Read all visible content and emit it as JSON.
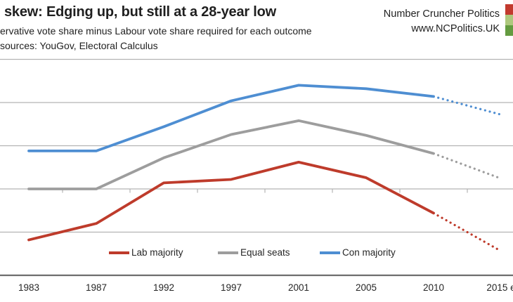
{
  "header": {
    "title": "skew: Edging up, but still at a 28-year low",
    "subtitle": "ervative vote share minus Labour vote share required for each outcome",
    "source_line": "sources: YouGov, Electoral Calculus",
    "brand": {
      "line1": "Number Cruncher Politics",
      "line2": "www.NCPolitics.UK",
      "logo_colors": [
        "#c23a2e",
        "#aec87d",
        "#649b40"
      ]
    }
  },
  "chart_data": {
    "type": "line",
    "title": "skew: Edging up, but still at a 28-year low",
    "subtitle": "Conservative vote share minus Labour vote share required for each outcome",
    "categories": [
      "1983",
      "1987",
      "1992",
      "1997",
      "2001",
      "2005",
      "2010",
      "2015 e"
    ],
    "series": [
      {
        "name": "Lab majority",
        "color": "#be3b2b",
        "values": [
          -5.9,
          -4.0,
          0.7,
          1.1,
          3.1,
          1.3,
          -2.8,
          -7.2
        ],
        "dotted_from_category": "2010"
      },
      {
        "name": "Equal seats",
        "color": "#9d9d9d",
        "values": [
          0.0,
          0.0,
          3.6,
          6.3,
          7.9,
          6.2,
          4.1,
          1.2
        ],
        "dotted_from_category": "2010"
      },
      {
        "name": "Con majority",
        "color": "#4e8ed2",
        "values": [
          4.4,
          4.4,
          7.2,
          10.2,
          12.0,
          11.6,
          10.7,
          8.6
        ],
        "dotted_from_category": "2010"
      }
    ],
    "xlabel": "",
    "ylabel": "",
    "ylim": [
      -10,
      15
    ],
    "grid_step": 5,
    "grid": true,
    "gridline_values": [
      15,
      10,
      5,
      0,
      -5
    ],
    "legend_position": "bottom-center",
    "colors": {
      "gridline": "#b3b3b3",
      "axis_line": "#6e6e6e",
      "text": "#1f1f1f"
    }
  }
}
